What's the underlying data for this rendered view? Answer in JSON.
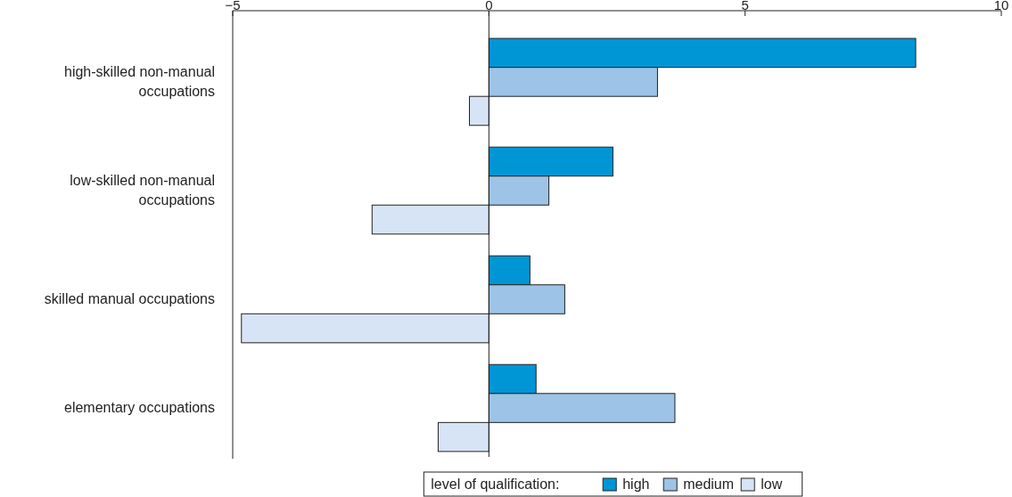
{
  "chart_data": {
    "type": "bar",
    "orientation": "horizontal",
    "categories": [
      "high-skilled non-manual occupations",
      "low-skilled non-manual occupations",
      "skilled manual occupations",
      "elementary occupations"
    ],
    "series": [
      {
        "name": "high",
        "color": "#0096d6",
        "values": [
          8.33,
          2.42,
          0.8,
          0.92
        ]
      },
      {
        "name": "medium",
        "color": "#9dc3e6",
        "values": [
          3.29,
          1.17,
          1.48,
          3.63
        ]
      },
      {
        "name": "low",
        "color": "#d6e4f5",
        "values": [
          -0.38,
          -2.28,
          -4.83,
          -0.99
        ]
      }
    ],
    "xlim": [
      -5,
      10
    ],
    "xticks": [
      {
        "value": -5,
        "label": "−5"
      },
      0,
      5,
      10
    ],
    "legend": "bottom",
    "legend_title": "level of qualification:",
    "ref_lines": [
      {
        "axis": "x",
        "value": 0,
        "color": "#222222"
      }
    ]
  }
}
